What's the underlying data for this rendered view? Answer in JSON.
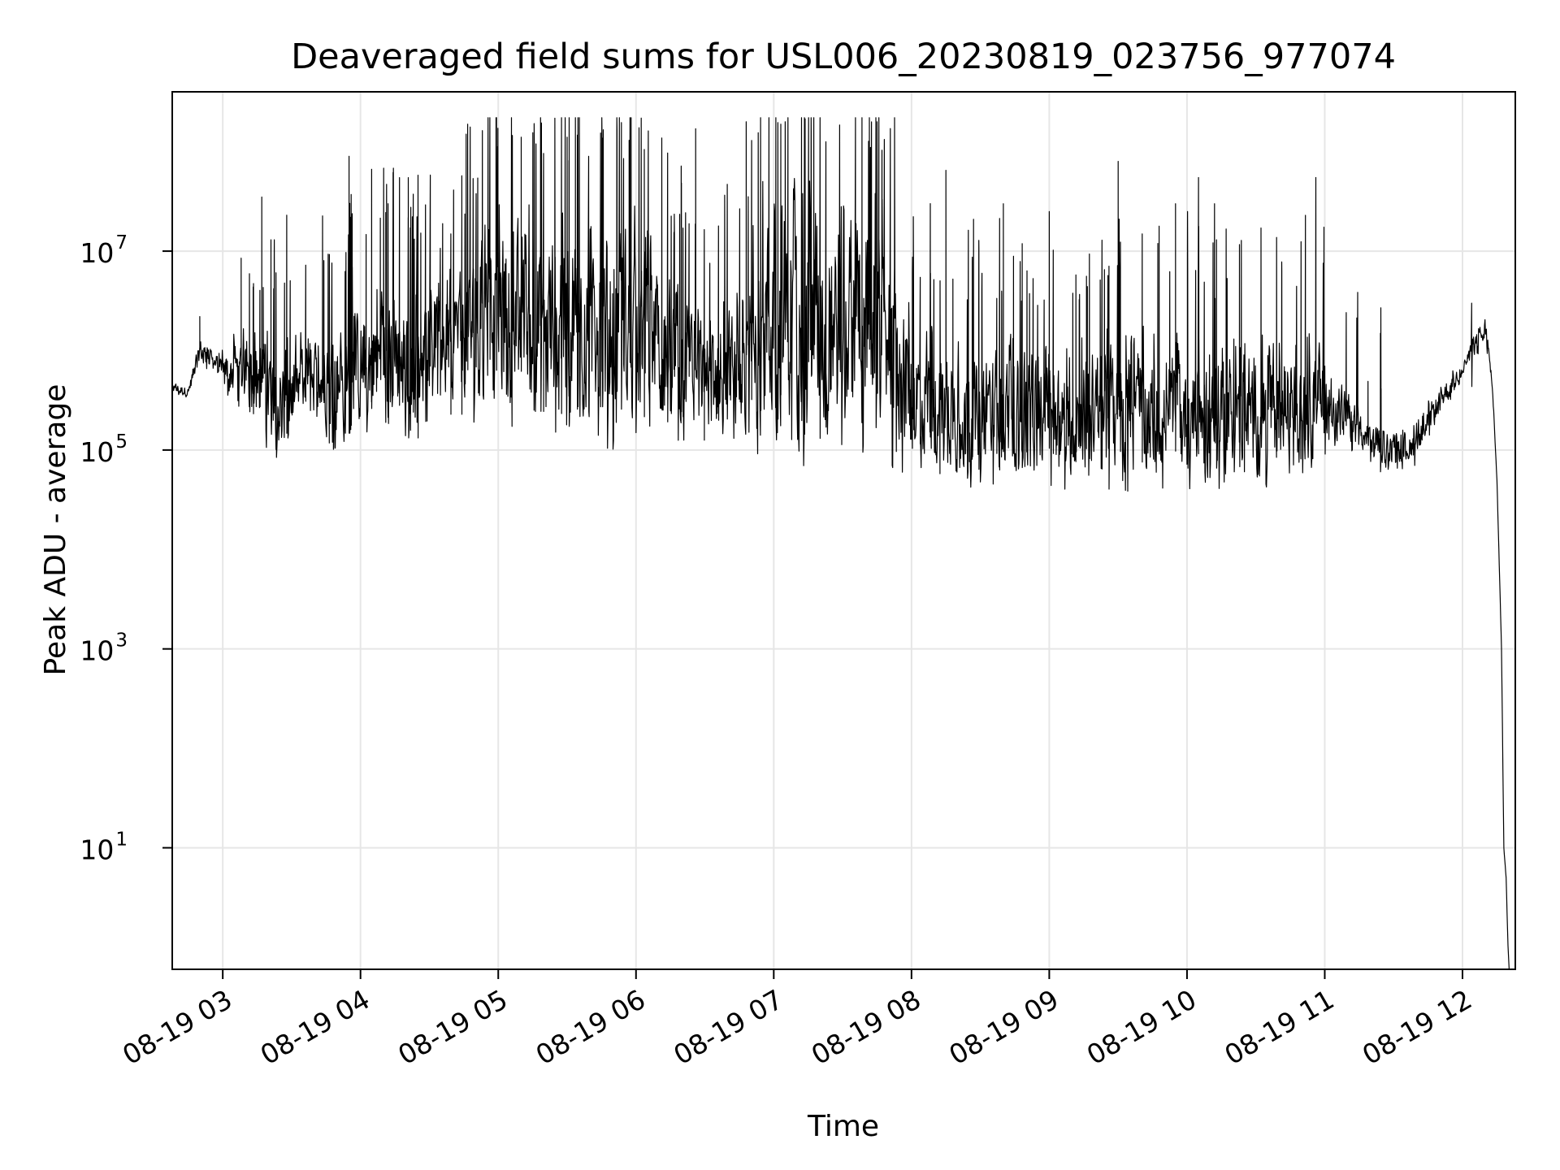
{
  "chart_data": {
    "type": "line",
    "title": "Deaveraged field sums for USL006_20230819_023756_977074",
    "xlabel": "Time",
    "ylabel": "Peak ADU - average",
    "yscale": "log",
    "xlim": [
      "2023-08-19 02:38",
      "2023-08-19 12:23"
    ],
    "ylim": [
      0.6,
      400000000
    ],
    "grid": true,
    "legend": "none",
    "colors": {
      "line": "#000000",
      "grid": "#e6e6e6",
      "axes": "#000000",
      "background": "#ffffff"
    },
    "x_ticks": [
      "08-19 03",
      "08-19 04",
      "08-19 05",
      "08-19 06",
      "08-19 07",
      "08-19 08",
      "08-19 09",
      "08-19 10",
      "08-19 11",
      "08-19 12"
    ],
    "y_ticks": [
      {
        "value": 10,
        "base": "10",
        "exp": "1"
      },
      {
        "value": 1000,
        "base": "10",
        "exp": "3"
      },
      {
        "value": 100000,
        "base": "10",
        "exp": "5"
      },
      {
        "value": 10000000,
        "base": "10",
        "exp": "7"
      }
    ],
    "series": [
      {
        "lower_envelope": {
          "time": [
            "2023-08-19 02:38",
            "2023-08-19 02:45",
            "2023-08-19 02:50",
            "2023-08-19 02:58",
            "2023-08-19 03:05",
            "2023-08-19 03:15",
            "2023-08-19 03:25",
            "2023-08-19 03:33",
            "2023-08-19 03:40",
            "2023-08-19 03:48",
            "2023-08-19 03:55",
            "2023-08-19 04:05",
            "2023-08-19 04:20",
            "2023-08-19 04:35",
            "2023-08-19 04:45",
            "2023-08-19 04:55",
            "2023-08-19 05:10",
            "2023-08-19 05:30",
            "2023-08-19 05:50",
            "2023-08-19 06:00",
            "2023-08-19 06:15",
            "2023-08-19 06:30",
            "2023-08-19 06:45",
            "2023-08-19 06:55",
            "2023-08-19 07:10",
            "2023-08-19 07:25",
            "2023-08-19 07:40",
            "2023-08-19 07:50",
            "2023-08-19 08:00",
            "2023-08-19 08:10",
            "2023-08-19 08:20",
            "2023-08-19 08:35",
            "2023-08-19 08:50",
            "2023-08-19 09:05",
            "2023-08-19 09:20",
            "2023-08-19 09:35",
            "2023-08-19 09:50",
            "2023-08-19 10:05",
            "2023-08-19 10:20",
            "2023-08-19 10:35",
            "2023-08-19 10:50",
            "2023-08-19 11:00",
            "2023-08-19 11:10",
            "2023-08-19 11:20",
            "2023-08-19 11:30",
            "2023-08-19 11:40",
            "2023-08-19 11:50",
            "2023-08-19 12:00",
            "2023-08-19 12:05",
            "2023-08-19 12:10",
            "2023-08-19 12:13",
            "2023-08-19 12:15",
            "2023-08-19 12:17",
            "2023-08-19 12:18",
            "2023-08-19 12:19",
            "2023-08-19 12:20"
          ],
          "value": [
            350000,
            330000,
            700000,
            450000,
            250000,
            150000,
            60000,
            130000,
            250000,
            80000,
            90000,
            150000,
            100000,
            250000,
            200000,
            150000,
            180000,
            120000,
            100000,
            90000,
            80000,
            100000,
            80000,
            60000,
            60000,
            70000,
            70000,
            50000,
            45000,
            45000,
            40000,
            45000,
            45000,
            40000,
            40000,
            38000,
            35000,
            35000,
            38000,
            40000,
            45000,
            80000,
            90000,
            70000,
            60000,
            70000,
            200000,
            500000,
            800000,
            1000000,
            400000,
            50000,
            1000,
            10,
            5,
            0.7
          ]
        },
        "upper_envelope": {
          "time": [
            "2023-08-19 02:38",
            "2023-08-19 02:45",
            "2023-08-19 02:50",
            "2023-08-19 02:58",
            "2023-08-19 03:05",
            "2023-08-19 03:15",
            "2023-08-19 03:25",
            "2023-08-19 03:33",
            "2023-08-19 03:40",
            "2023-08-19 03:48",
            "2023-08-19 03:55",
            "2023-08-19 04:05",
            "2023-08-19 04:20",
            "2023-08-19 04:35",
            "2023-08-19 04:45",
            "2023-08-19 04:55",
            "2023-08-19 05:10",
            "2023-08-19 05:30",
            "2023-08-19 05:50",
            "2023-08-19 06:00",
            "2023-08-19 06:15",
            "2023-08-19 06:30",
            "2023-08-19 06:45",
            "2023-08-19 06:55",
            "2023-08-19 07:10",
            "2023-08-19 07:25",
            "2023-08-19 07:40",
            "2023-08-19 07:50",
            "2023-08-19 08:00",
            "2023-08-19 08:10",
            "2023-08-19 08:20",
            "2023-08-19 08:35",
            "2023-08-19 08:50",
            "2023-08-19 09:05",
            "2023-08-19 09:20",
            "2023-08-19 09:35",
            "2023-08-19 09:50",
            "2023-08-19 10:05",
            "2023-08-19 10:20",
            "2023-08-19 10:35",
            "2023-08-19 10:50",
            "2023-08-19 11:00",
            "2023-08-19 11:10",
            "2023-08-19 11:20",
            "2023-08-19 11:30",
            "2023-08-19 11:40",
            "2023-08-19 11:50",
            "2023-08-19 12:00",
            "2023-08-19 12:05",
            "2023-08-19 12:10",
            "2023-08-19 12:13",
            "2023-08-19 12:15",
            "2023-08-19 12:17",
            "2023-08-19 12:18",
            "2023-08-19 12:19",
            "2023-08-19 12:20"
          ],
          "value": [
            500000,
            450000,
            1500000,
            1000000,
            1500000,
            2000000,
            1500000,
            1600000,
            1500000,
            3000000,
            3000000,
            5000000,
            5000000,
            5000000,
            10000000,
            30000000,
            30000000,
            40000000,
            40000000,
            30000000,
            8000000,
            3000000,
            4000000,
            60000000,
            80000000,
            60000000,
            60000000,
            30000000,
            3000000,
            2000000,
            1500000,
            1500000,
            1500000,
            1300000,
            1500000,
            2000000,
            1500000,
            1500000,
            1600000,
            1500000,
            1600000,
            1500000,
            500000,
            200000,
            150000,
            200000,
            500000,
            800000,
            1500000,
            2500000,
            500000,
            50000,
            1000,
            10,
            5,
            0.7
          ]
        },
        "spike_peaks": [
          {
            "time": "2023-08-19 02:50",
            "value": 2200000
          },
          {
            "time": "2023-08-19 03:08",
            "value": 8500000
          },
          {
            "time": "2023-08-19 03:17",
            "value": 35000000
          },
          {
            "time": "2023-08-19 03:21",
            "value": 13000000
          },
          {
            "time": "2023-08-19 03:55",
            "value": 90000000
          },
          {
            "time": "2023-08-19 04:12",
            "value": 30000000
          },
          {
            "time": "2023-08-19 04:46",
            "value": 150000000
          },
          {
            "time": "2023-08-19 05:10",
            "value": 140000000
          },
          {
            "time": "2023-08-19 05:30",
            "value": 140000000
          },
          {
            "time": "2023-08-19 05:57",
            "value": 130000000
          },
          {
            "time": "2023-08-19 06:26",
            "value": 170000000
          },
          {
            "time": "2023-08-19 06:48",
            "value": 200000000
          },
          {
            "time": "2023-08-19 07:05",
            "value": 200000000
          },
          {
            "time": "2023-08-19 07:45",
            "value": 200000000
          },
          {
            "time": "2023-08-19 08:15",
            "value": 65000000
          },
          {
            "time": "2023-08-19 08:40",
            "value": 30000000
          },
          {
            "time": "2023-08-19 09:00",
            "value": 25000000
          },
          {
            "time": "2023-08-19 09:30",
            "value": 80000000
          },
          {
            "time": "2023-08-19 09:55",
            "value": 30000000
          },
          {
            "time": "2023-08-19 10:05",
            "value": 55000000
          },
          {
            "time": "2023-08-19 10:12",
            "value": 30000000
          },
          {
            "time": "2023-08-19 12:04",
            "value": 3000000
          }
        ]
      }
    ]
  }
}
